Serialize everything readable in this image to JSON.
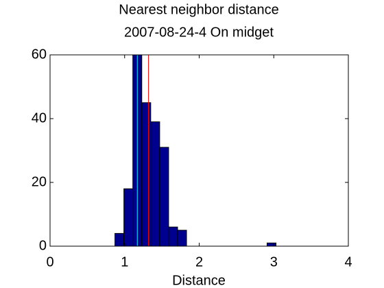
{
  "chart_data": {
    "type": "histogram",
    "title": [
      "Nearest neighbor distance",
      "2007-08-24-4 On midget"
    ],
    "xlabel": "Distance",
    "bins": [
      0.87,
      0.99,
      1.11,
      1.23,
      1.35,
      1.47,
      1.59,
      1.71,
      1.83,
      1.95,
      2.07,
      2.19,
      2.31,
      2.43,
      2.55,
      2.67,
      2.79,
      2.91,
      3.03
    ],
    "values": [
      4,
      18,
      65,
      45,
      39,
      31,
      6,
      5,
      0,
      0,
      0,
      0,
      0,
      0,
      0,
      0,
      0,
      1
    ],
    "color": "#00008f",
    "lines": [
      {
        "x": 1.17,
        "color": "#00ffff"
      },
      {
        "x": 1.32,
        "color": "#ff0000"
      }
    ],
    "xlim": [
      0,
      4
    ],
    "xticks": [
      0,
      1,
      2,
      3,
      4
    ],
    "ylim": [
      0,
      60
    ],
    "yticks": [
      0,
      20,
      40,
      60
    ]
  }
}
